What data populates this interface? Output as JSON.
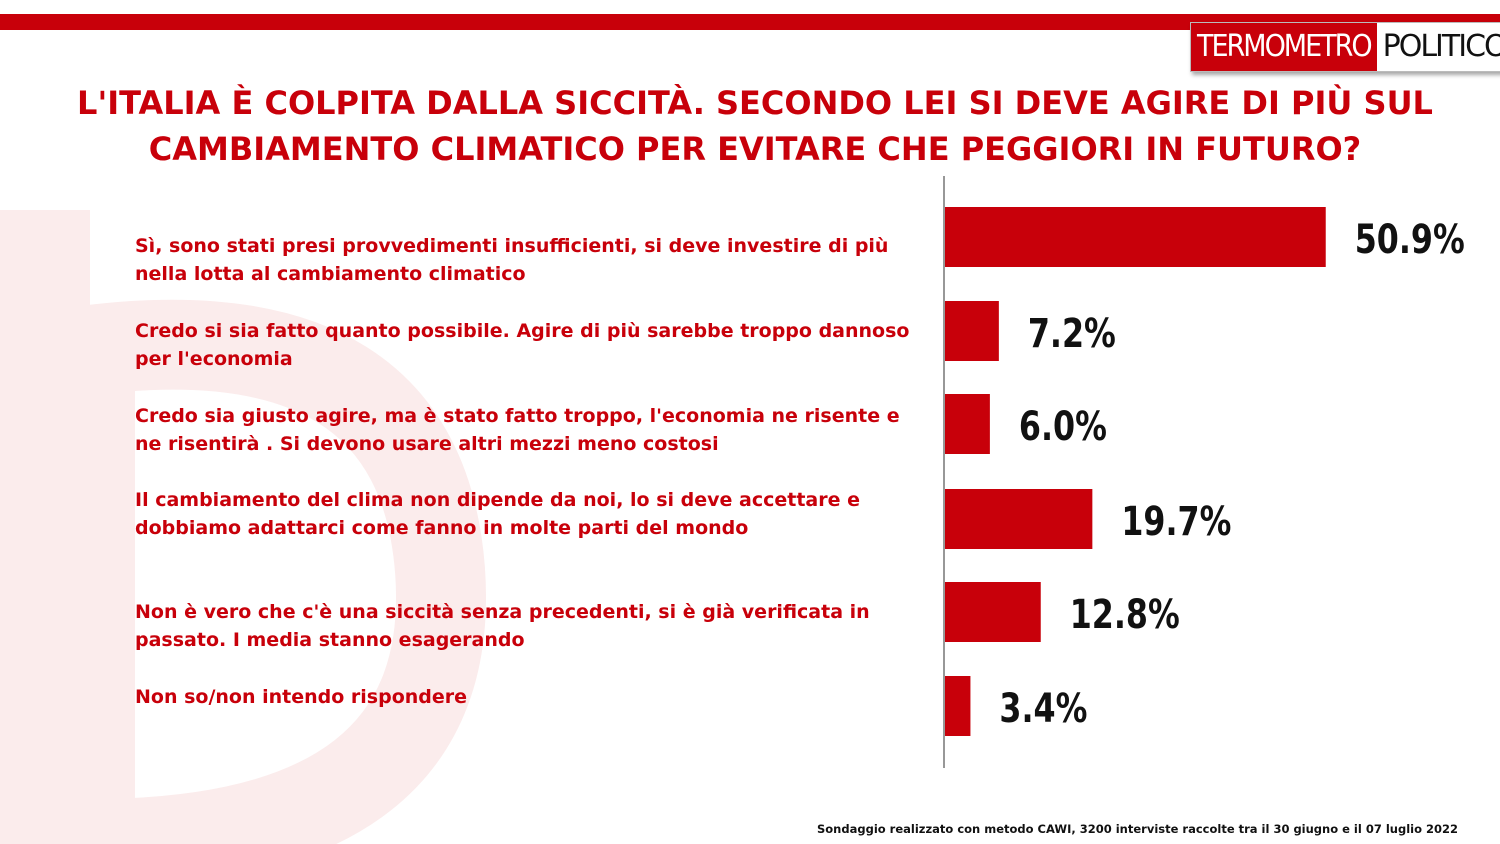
{
  "brand": {
    "logo_part1": "TERMOMETRO",
    "logo_part2": "POLITICO",
    "accent": "#c8000a"
  },
  "footer": {
    "note": "Sondaggio realizzato con metodo CAWI, 3200 interviste raccolte tra il 30 giugno  e il 07 luglio 2022"
  },
  "chart_data": {
    "type": "bar",
    "orientation": "horizontal",
    "title": "L'ITALIA È COLPITA DALLA SICCITÀ. SECONDO LEI SI DEVE AGIRE DI PIÙ SUL CAMBIAMENTO CLIMATICO PER EVITARE CHE PEGGIORI IN FUTURO?",
    "categories": [
      "Sì, sono stati presi provvedimenti insufficienti, si deve investire di più nella lotta al cambiamento climatico",
      "Credo si sia fatto quanto possibile. Agire di più sarebbe troppo dannoso per l'economia",
      "Credo sia giusto agire, ma è stato fatto troppo, l'economia ne risente e ne risentirà . Si devono usare altri mezzi meno costosi",
      "Il cambiamento del clima non dipende da noi, lo si deve accettare e dobbiamo adattarci come fanno in molte parti del mondo",
      "Non è vero che c'è una siccità  senza precedenti, si è già verificata in passato. I media stanno esagerando",
      "Non so/non intendo rispondere"
    ],
    "values": [
      50.9,
      7.2,
      6.0,
      19.7,
      12.8,
      3.4
    ],
    "data_labels": [
      "50.9%",
      "7.2%",
      "6.0%",
      "19.7%",
      "12.8%",
      "3.4%"
    ],
    "bar_color": "#c8000a",
    "grid": false,
    "legend": "none"
  }
}
